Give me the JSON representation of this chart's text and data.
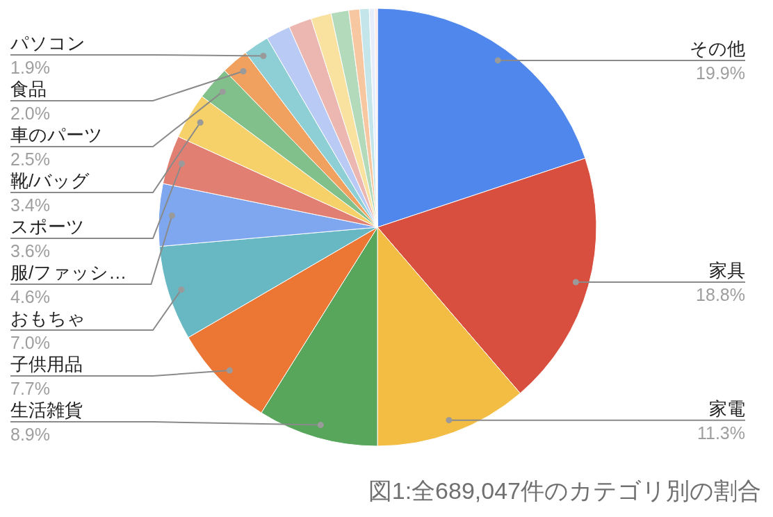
{
  "chart_data": {
    "type": "pie",
    "categories": [
      "その他",
      "家具",
      "家電",
      "生活雑貨",
      "子供用品",
      "おもちゃ",
      "服/ファッシ…",
      "スポーツ",
      "靴/バッグ",
      "車のパーツ",
      "食品",
      "パソコン",
      null,
      null,
      null,
      null,
      null,
      null,
      null,
      null
    ],
    "values": [
      19.9,
      18.8,
      11.3,
      8.9,
      7.7,
      7.0,
      4.6,
      3.6,
      3.4,
      2.5,
      2.0,
      1.9,
      1.8,
      1.7,
      1.5,
      1.3,
      0.8,
      0.7,
      0.4,
      0.2
    ],
    "value_labels": [
      "19.9%",
      "18.8%",
      "11.3%",
      "8.9%",
      "7.7%",
      "7.0%",
      "4.6%",
      "3.6%",
      "3.4%",
      "2.5%",
      "2.0%",
      "1.9%",
      null,
      null,
      null,
      null,
      null,
      null,
      null,
      null
    ],
    "colors": [
      "#5087ec",
      "#d94f3f",
      "#f2bd42",
      "#58a55c",
      "#ec7633",
      "#67b8c3",
      "#7fa7ef",
      "#e27f73",
      "#f6d068",
      "#81c08a",
      "#f0a05f",
      "#8ecfd6",
      "#b9cbf5",
      "#ecb6b1",
      "#f9e1a0",
      "#b3dabb",
      "#f6c7a0",
      "#c4e6ea",
      "#e6eefc",
      "#fbe8e6"
    ],
    "annotations": [
      "図1:全689,047件のカテゴリ別の割合"
    ]
  }
}
